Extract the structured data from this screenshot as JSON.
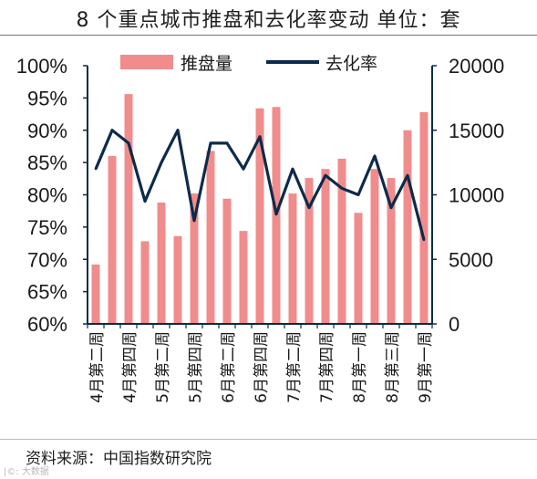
{
  "title": "8 个重点城市推盘和去化率变动 单位：套",
  "source": "资料来源：中国指数研究院",
  "watermark": "|©: 大数据",
  "chart_data": {
    "type": "bar+line",
    "categories": [
      "4月第二周",
      "4月第三周",
      "4月第四周",
      "5月第一周",
      "5月第二周",
      "5月第三周",
      "5月第四周",
      "6月第一周",
      "6月第二周",
      "6月第三周",
      "6月第四周",
      "6月第五周",
      "7月第一周",
      "7月第二周",
      "7月第三周",
      "7月第四周",
      "8月第一周",
      "8月第二周",
      "8月第三周",
      "8月第四周",
      "9月第一周"
    ],
    "x_tick_labels": [
      "4月第二周",
      "4月第四周",
      "5月第二周",
      "5月第四周",
      "6月第二周",
      "6月第四周",
      "7月第二周",
      "7月第四周",
      "8月第一周",
      "8月第三周",
      "9月第一周"
    ],
    "series": [
      {
        "name": "推盘量",
        "type": "bar",
        "axis": "right",
        "color": "#f08c8c",
        "values": [
          4600,
          13000,
          17800,
          6400,
          9400,
          6800,
          10100,
          13400,
          9700,
          7200,
          16700,
          16800,
          10100,
          11300,
          12000,
          12800,
          8600,
          12000,
          11300,
          15000,
          16400
        ]
      },
      {
        "name": "去化率",
        "type": "line",
        "axis": "left",
        "color": "#0d2a4a",
        "values": [
          0.84,
          0.9,
          0.88,
          0.79,
          0.85,
          0.9,
          0.76,
          0.88,
          0.88,
          0.84,
          0.89,
          0.77,
          0.84,
          0.78,
          0.83,
          0.81,
          0.8,
          0.86,
          0.78,
          0.83,
          0.73
        ]
      }
    ],
    "y_left": {
      "range": [
        0.6,
        1.0
      ],
      "ticks": [
        "100%",
        "95%",
        "90%",
        "85%",
        "80%",
        "75%",
        "70%",
        "65%",
        "60%"
      ]
    },
    "y_right": {
      "range": [
        0,
        20000
      ],
      "ticks": [
        "20000",
        "15000",
        "10000",
        "5000",
        "0"
      ]
    },
    "grid": false,
    "legend": "top-center"
  }
}
